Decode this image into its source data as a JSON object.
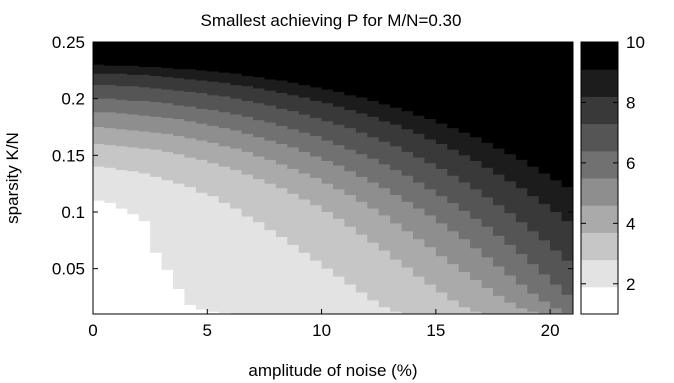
{
  "chart_data": {
    "type": "heatmap",
    "title": "Smallest achieving P for M/N=0.30",
    "xlabel": "amplitude of noise (%)",
    "ylabel": "sparsity K/N",
    "xlim": [
      0,
      21
    ],
    "ylim": [
      0.01,
      0.25
    ],
    "x_ticks": [
      {
        "value": 0,
        "label": "0"
      },
      {
        "value": 5,
        "label": "5"
      },
      {
        "value": 10,
        "label": "10"
      },
      {
        "value": 15,
        "label": "15"
      },
      {
        "value": 20,
        "label": "20"
      }
    ],
    "y_ticks": [
      {
        "value": 0.05,
        "label": "0.05"
      },
      {
        "value": 0.1,
        "label": "0.1"
      },
      {
        "value": 0.15,
        "label": "0.15"
      },
      {
        "value": 0.2,
        "label": "0.2"
      },
      {
        "value": 0.25,
        "label": "0.25"
      }
    ],
    "colorbar": {
      "range": [
        1,
        10
      ],
      "levels": 10,
      "colormap": "gray-reversed",
      "ticks": [
        {
          "value": 2,
          "label": "2"
        },
        {
          "value": 4,
          "label": "4"
        },
        {
          "value": 6,
          "label": "6"
        },
        {
          "value": 8,
          "label": "8"
        },
        {
          "value": 10,
          "label": "10"
        }
      ]
    },
    "x_columns": [
      0.0,
      0.5,
      1.0,
      1.5,
      2.0,
      2.5,
      3.0,
      3.5,
      4.0,
      4.5,
      5.0,
      5.5,
      6.0,
      6.5,
      7.0,
      7.5,
      8.0,
      8.5,
      9.0,
      9.5,
      10.0,
      10.5,
      11.0,
      11.5,
      12.0,
      12.5,
      13.0,
      13.5,
      14.0,
      14.5,
      15.0,
      15.5,
      16.0,
      16.5,
      17.0,
      17.5,
      18.0,
      18.5,
      19.0,
      19.5,
      20.0,
      20.5
    ],
    "boundaries": [
      {
        "level": 2,
        "y": [
          0.11,
          0.108,
          0.103,
          0.098,
          0.092,
          0.064,
          0.049,
          0.032,
          0.018,
          0.014,
          0.012,
          0.011,
          0.01,
          0.01,
          0.01,
          0.01,
          0.01,
          0.01,
          0.01,
          0.01,
          0.01,
          0.01,
          0.01,
          0.01,
          0.01,
          0.01,
          0.01,
          0.01,
          0.01,
          0.01,
          0.01,
          0.01,
          0.01,
          0.01,
          0.01,
          0.01,
          0.01,
          0.01,
          0.01,
          0.01,
          0.01,
          0.01
        ]
      },
      {
        "level": 3,
        "y": [
          0.14,
          0.139,
          0.137,
          0.136,
          0.134,
          0.131,
          0.128,
          0.125,
          0.122,
          0.117,
          0.114,
          0.108,
          0.103,
          0.096,
          0.091,
          0.084,
          0.078,
          0.071,
          0.064,
          0.057,
          0.05,
          0.043,
          0.036,
          0.029,
          0.022,
          0.016,
          0.012,
          0.01,
          0.01,
          0.01,
          0.01,
          0.01,
          0.01,
          0.01,
          0.01,
          0.01,
          0.01,
          0.01,
          0.01,
          0.01,
          0.01,
          0.01
        ]
      },
      {
        "level": 4,
        "y": [
          0.16,
          0.159,
          0.158,
          0.157,
          0.156,
          0.155,
          0.153,
          0.151,
          0.148,
          0.146,
          0.143,
          0.14,
          0.137,
          0.133,
          0.129,
          0.125,
          0.121,
          0.116,
          0.111,
          0.106,
          0.1,
          0.094,
          0.087,
          0.08,
          0.073,
          0.066,
          0.058,
          0.051,
          0.043,
          0.036,
          0.029,
          0.022,
          0.016,
          0.012,
          0.01,
          0.01,
          0.01,
          0.01,
          0.01,
          0.01,
          0.01,
          0.01
        ]
      },
      {
        "level": 5,
        "y": [
          0.175,
          0.174,
          0.173,
          0.172,
          0.171,
          0.17,
          0.169,
          0.167,
          0.165,
          0.163,
          0.161,
          0.158,
          0.156,
          0.153,
          0.149,
          0.146,
          0.142,
          0.138,
          0.134,
          0.13,
          0.125,
          0.12,
          0.115,
          0.109,
          0.103,
          0.097,
          0.09,
          0.083,
          0.076,
          0.069,
          0.061,
          0.054,
          0.047,
          0.04,
          0.033,
          0.026,
          0.02,
          0.015,
          0.012,
          0.01,
          0.01,
          0.01
        ]
      },
      {
        "level": 6,
        "y": [
          0.188,
          0.188,
          0.187,
          0.186,
          0.185,
          0.184,
          0.183,
          0.182,
          0.18,
          0.178,
          0.176,
          0.174,
          0.172,
          0.169,
          0.166,
          0.163,
          0.16,
          0.157,
          0.153,
          0.149,
          0.145,
          0.141,
          0.136,
          0.131,
          0.126,
          0.121,
          0.115,
          0.109,
          0.103,
          0.097,
          0.09,
          0.083,
          0.076,
          0.068,
          0.06,
          0.052,
          0.044,
          0.036,
          0.028,
          0.021,
          0.015,
          0.011
        ]
      },
      {
        "level": 7,
        "y": [
          0.2,
          0.2,
          0.199,
          0.198,
          0.198,
          0.197,
          0.196,
          0.194,
          0.193,
          0.191,
          0.19,
          0.188,
          0.186,
          0.184,
          0.181,
          0.179,
          0.176,
          0.173,
          0.17,
          0.167,
          0.163,
          0.159,
          0.155,
          0.151,
          0.147,
          0.142,
          0.137,
          0.132,
          0.126,
          0.12,
          0.114,
          0.108,
          0.101,
          0.094,
          0.087,
          0.079,
          0.071,
          0.063,
          0.054,
          0.045,
          0.036,
          0.027
        ]
      },
      {
        "level": 8,
        "y": [
          0.212,
          0.212,
          0.211,
          0.211,
          0.21,
          0.209,
          0.208,
          0.207,
          0.206,
          0.205,
          0.203,
          0.202,
          0.2,
          0.198,
          0.196,
          0.194,
          0.191,
          0.189,
          0.186,
          0.183,
          0.18,
          0.177,
          0.174,
          0.17,
          0.166,
          0.162,
          0.158,
          0.153,
          0.148,
          0.143,
          0.138,
          0.132,
          0.126,
          0.12,
          0.113,
          0.106,
          0.099,
          0.091,
          0.083,
          0.075,
          0.066,
          0.057
        ]
      },
      {
        "level": 9,
        "y": [
          0.222,
          0.222,
          0.222,
          0.221,
          0.221,
          0.22,
          0.219,
          0.218,
          0.217,
          0.216,
          0.215,
          0.214,
          0.212,
          0.211,
          0.209,
          0.207,
          0.205,
          0.203,
          0.201,
          0.198,
          0.196,
          0.193,
          0.19,
          0.187,
          0.184,
          0.18,
          0.177,
          0.173,
          0.169,
          0.164,
          0.16,
          0.155,
          0.15,
          0.145,
          0.139,
          0.133,
          0.127,
          0.121,
          0.114,
          0.107,
          0.1,
          0.092
        ]
      },
      {
        "level": 10,
        "y": [
          0.23,
          0.229,
          0.229,
          0.229,
          0.228,
          0.228,
          0.227,
          0.226,
          0.226,
          0.225,
          0.224,
          0.223,
          0.222,
          0.22,
          0.219,
          0.217,
          0.216,
          0.214,
          0.212,
          0.21,
          0.208,
          0.206,
          0.203,
          0.201,
          0.198,
          0.195,
          0.192,
          0.189,
          0.185,
          0.182,
          0.178,
          0.174,
          0.17,
          0.166,
          0.161,
          0.156,
          0.151,
          0.146,
          0.14,
          0.134,
          0.128,
          0.122
        ]
      }
    ]
  }
}
